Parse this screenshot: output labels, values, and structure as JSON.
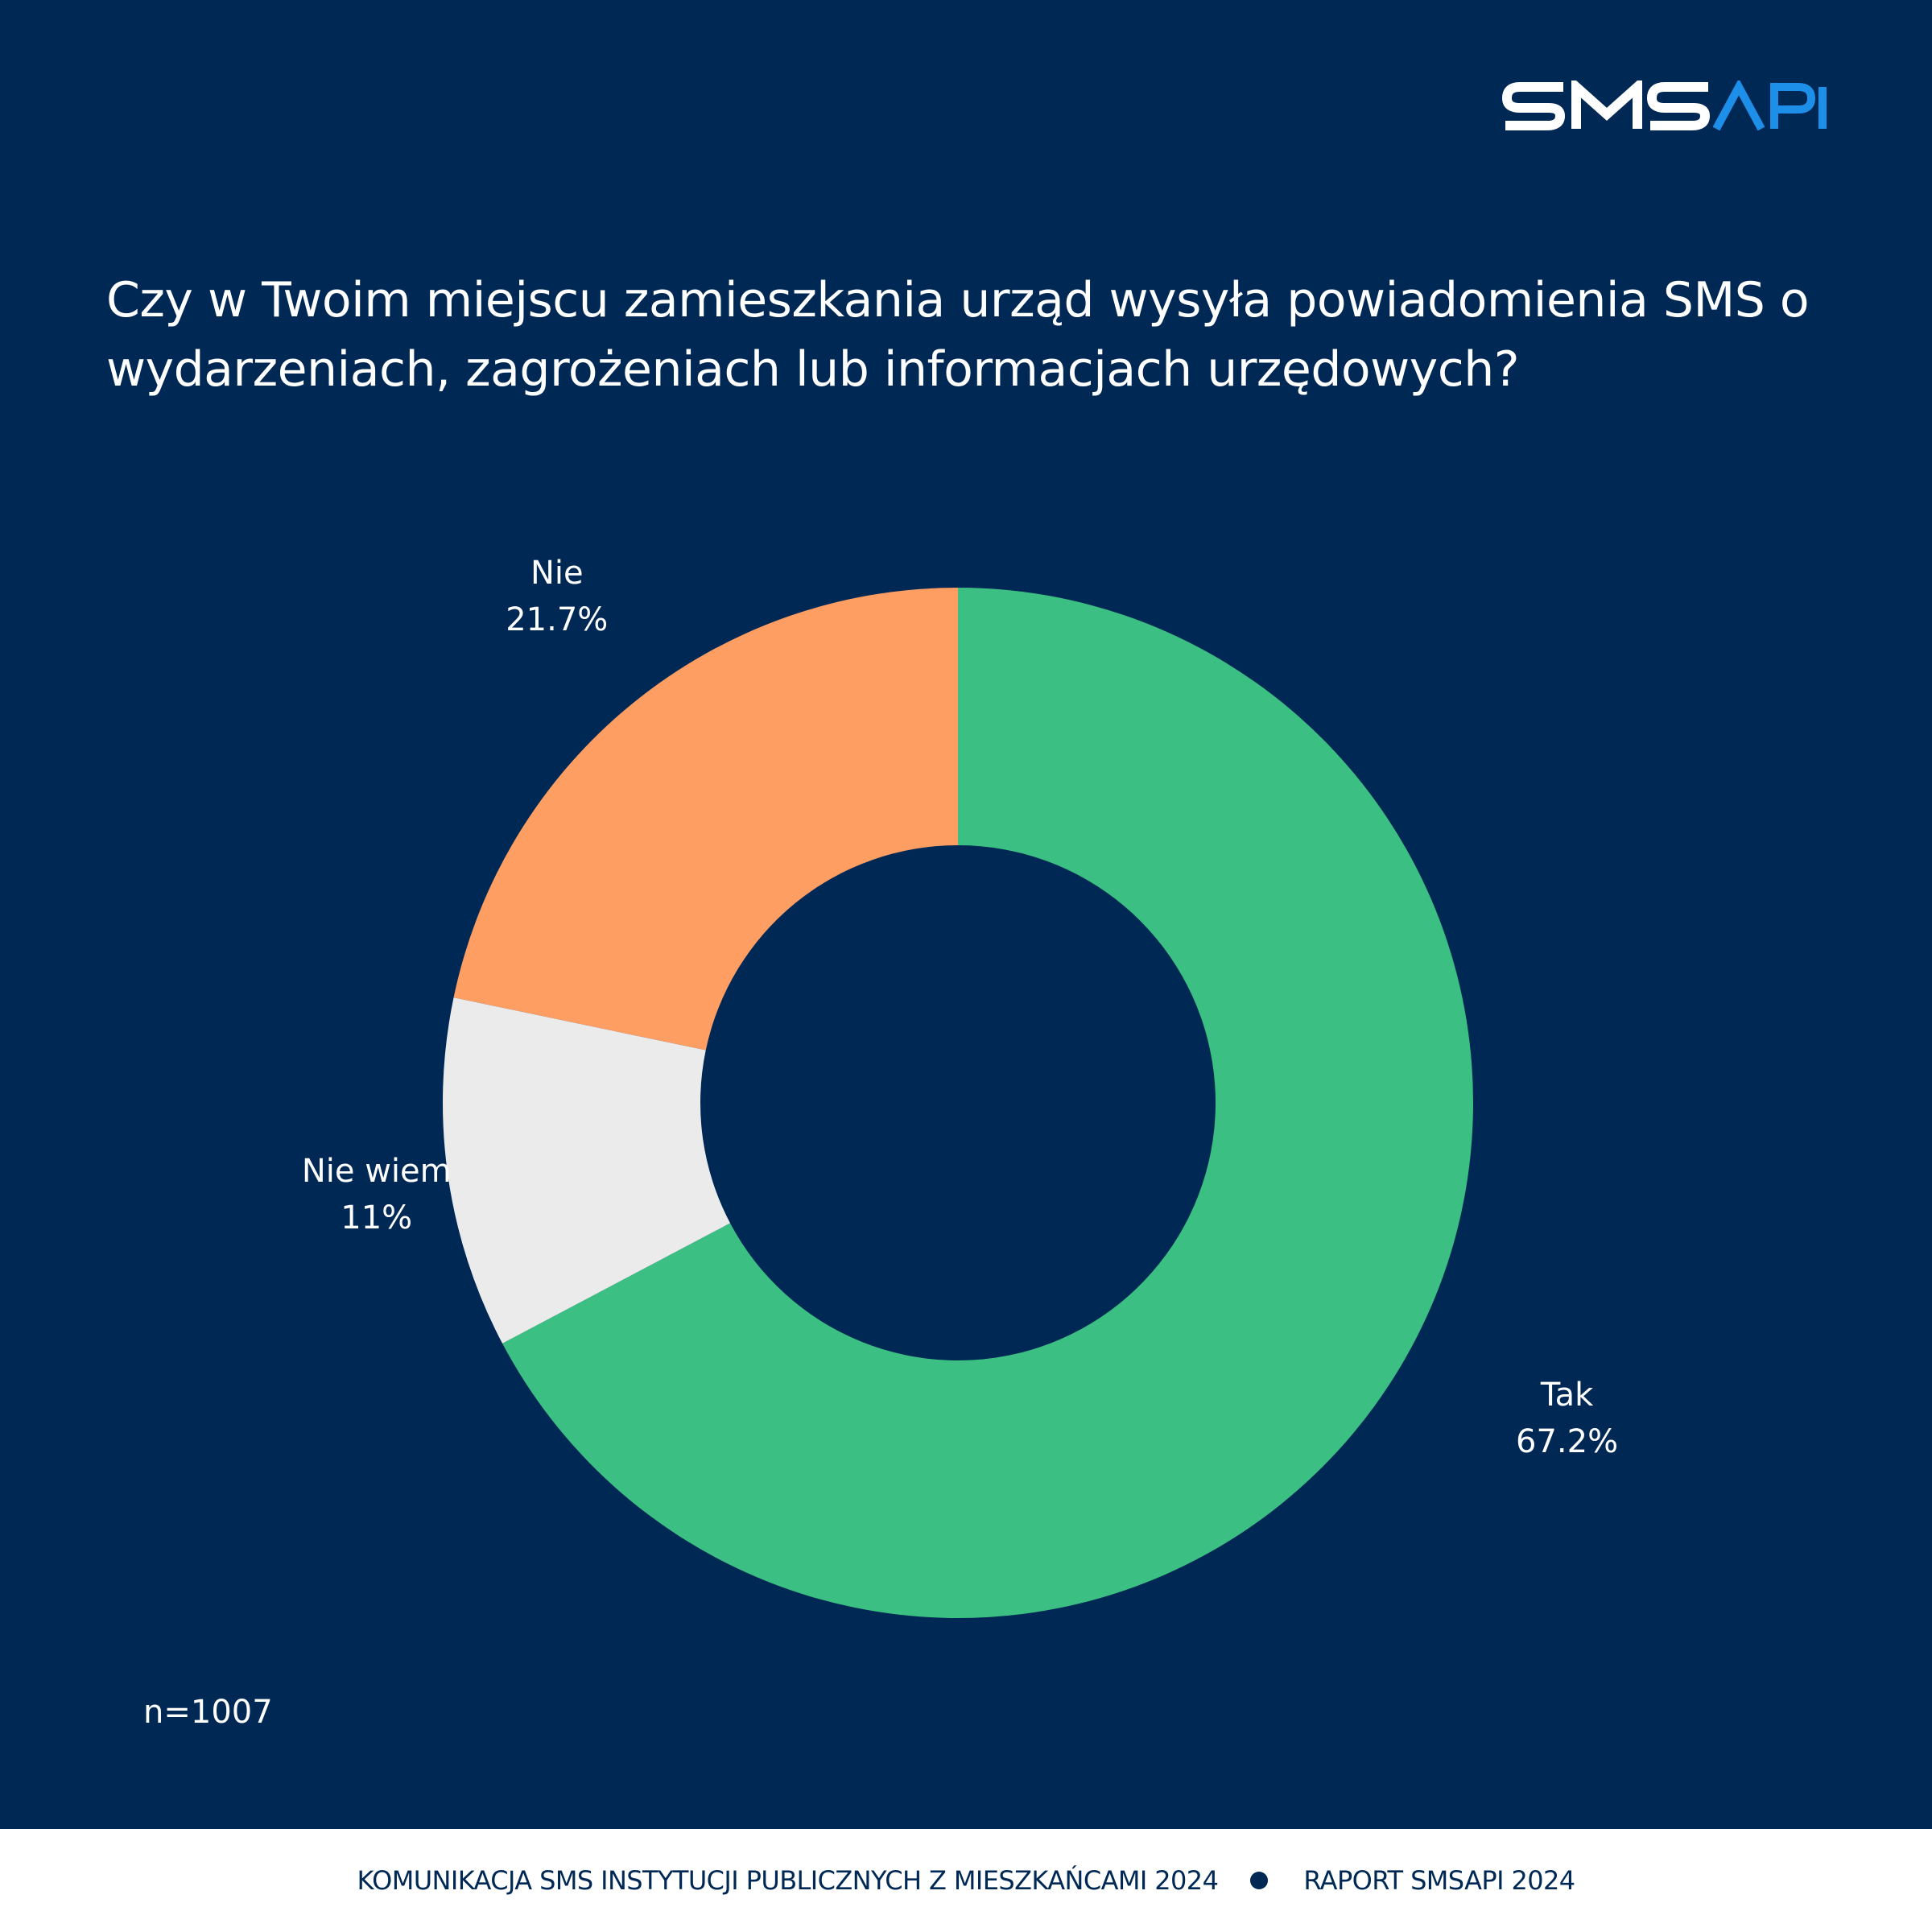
{
  "brand": {
    "logo_text": "SMSAPI",
    "logo_part1": "SMS",
    "logo_part2": "API",
    "colors": {
      "background": "#002855",
      "logo_white": "#ffffff",
      "logo_blue": "#1e8fe8"
    }
  },
  "question": "Czy w Twoim miejscu zamieszkania urząd wysyła powiadomienia SMS o wydarzeniach, zagrożeniach lub informacjach urzędowych?",
  "sample_size": "n=1007",
  "chart_data": {
    "type": "pie",
    "variant": "donut",
    "title": "Czy w Twoim miejscu zamieszkania urząd wysyła powiadomienia SMS o wydarzeniach, zagrożeniach lub informacjach urzędowych?",
    "slices": [
      {
        "label": "Tak",
        "value": 67.2,
        "value_label": "67.2%",
        "color": "#3bbf82"
      },
      {
        "label": "Nie wiem",
        "value": 11,
        "value_label": "11%",
        "color": "#ebebeb"
      },
      {
        "label": "Nie",
        "value": 21.7,
        "value_label": "21.7%",
        "color": "#ff9e63"
      }
    ],
    "start": "top",
    "direction": "clockwise",
    "label_color": "#ffffff",
    "legend": "none"
  },
  "footer": {
    "left": "KOMUNIKACJA SMS INSTYTUCJI PUBLICZNYCH Z MIESZKAŃCAMI 2024",
    "right": "RAPORT SMSAPI 2024"
  }
}
